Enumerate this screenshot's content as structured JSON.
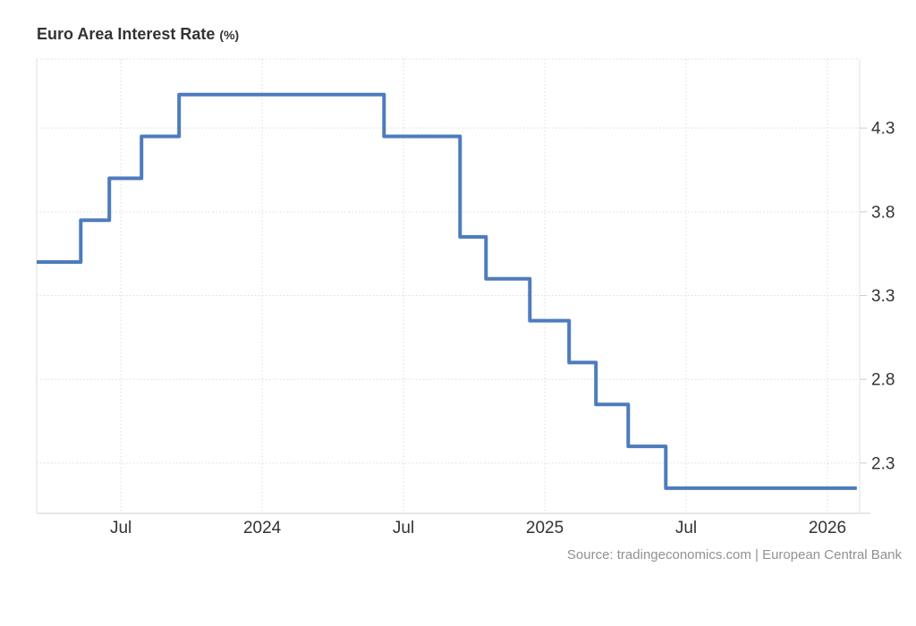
{
  "page": {
    "background": "#ffffff"
  },
  "header": {
    "title": "Euro Area Interest Rate",
    "unit_suffix": "(%)"
  },
  "footer": {
    "source": "Source: tradingeconomics.com | European Central Bank"
  },
  "colors": {
    "line": "#4d7bbd",
    "axis_line": "#e0e0e0",
    "axis_bottom": "#e7e7e7",
    "grid": "#dcdcdc",
    "tick": "#cccccc",
    "tick_label": "#333333",
    "title_text": "#333333",
    "source_text": "#919191"
  },
  "chart_data": {
    "type": "line",
    "step": "after",
    "title": "Euro Area Interest Rate (%)",
    "xlabel": "",
    "ylabel": "",
    "legend": "none",
    "grid": "dotted",
    "xlim": [
      2023.202,
      2026.114
    ],
    "ylim": [
      2.0,
      4.712
    ],
    "x_ticks": [
      {
        "pos": 2023.5,
        "label": "Jul"
      },
      {
        "pos": 2024.0,
        "label": "2024"
      },
      {
        "pos": 2024.5,
        "label": "Jul"
      },
      {
        "pos": 2025.0,
        "label": "2025"
      },
      {
        "pos": 2025.5,
        "label": "Jul"
      },
      {
        "pos": 2026.0,
        "label": "2026"
      }
    ],
    "y_ticks": [
      4.3,
      3.8,
      3.3,
      2.8,
      2.3
    ],
    "series": [
      {
        "name": "Euro Area Interest Rate",
        "unit": "%",
        "points": [
          [
            2023.202,
            3.5
          ],
          [
            2023.358,
            3.75
          ],
          [
            2023.459,
            4.0
          ],
          [
            2023.573,
            4.25
          ],
          [
            2023.706,
            4.5
          ],
          [
            2024.431,
            4.25
          ],
          [
            2024.7,
            3.65
          ],
          [
            2024.792,
            3.4
          ],
          [
            2024.947,
            3.15
          ],
          [
            2025.086,
            2.9
          ],
          [
            2025.181,
            2.65
          ],
          [
            2025.295,
            2.4
          ],
          [
            2025.428,
            2.15
          ],
          [
            2026.104,
            2.15
          ]
        ]
      }
    ],
    "source": "Source: tradingeconomics.com | European Central Bank"
  }
}
